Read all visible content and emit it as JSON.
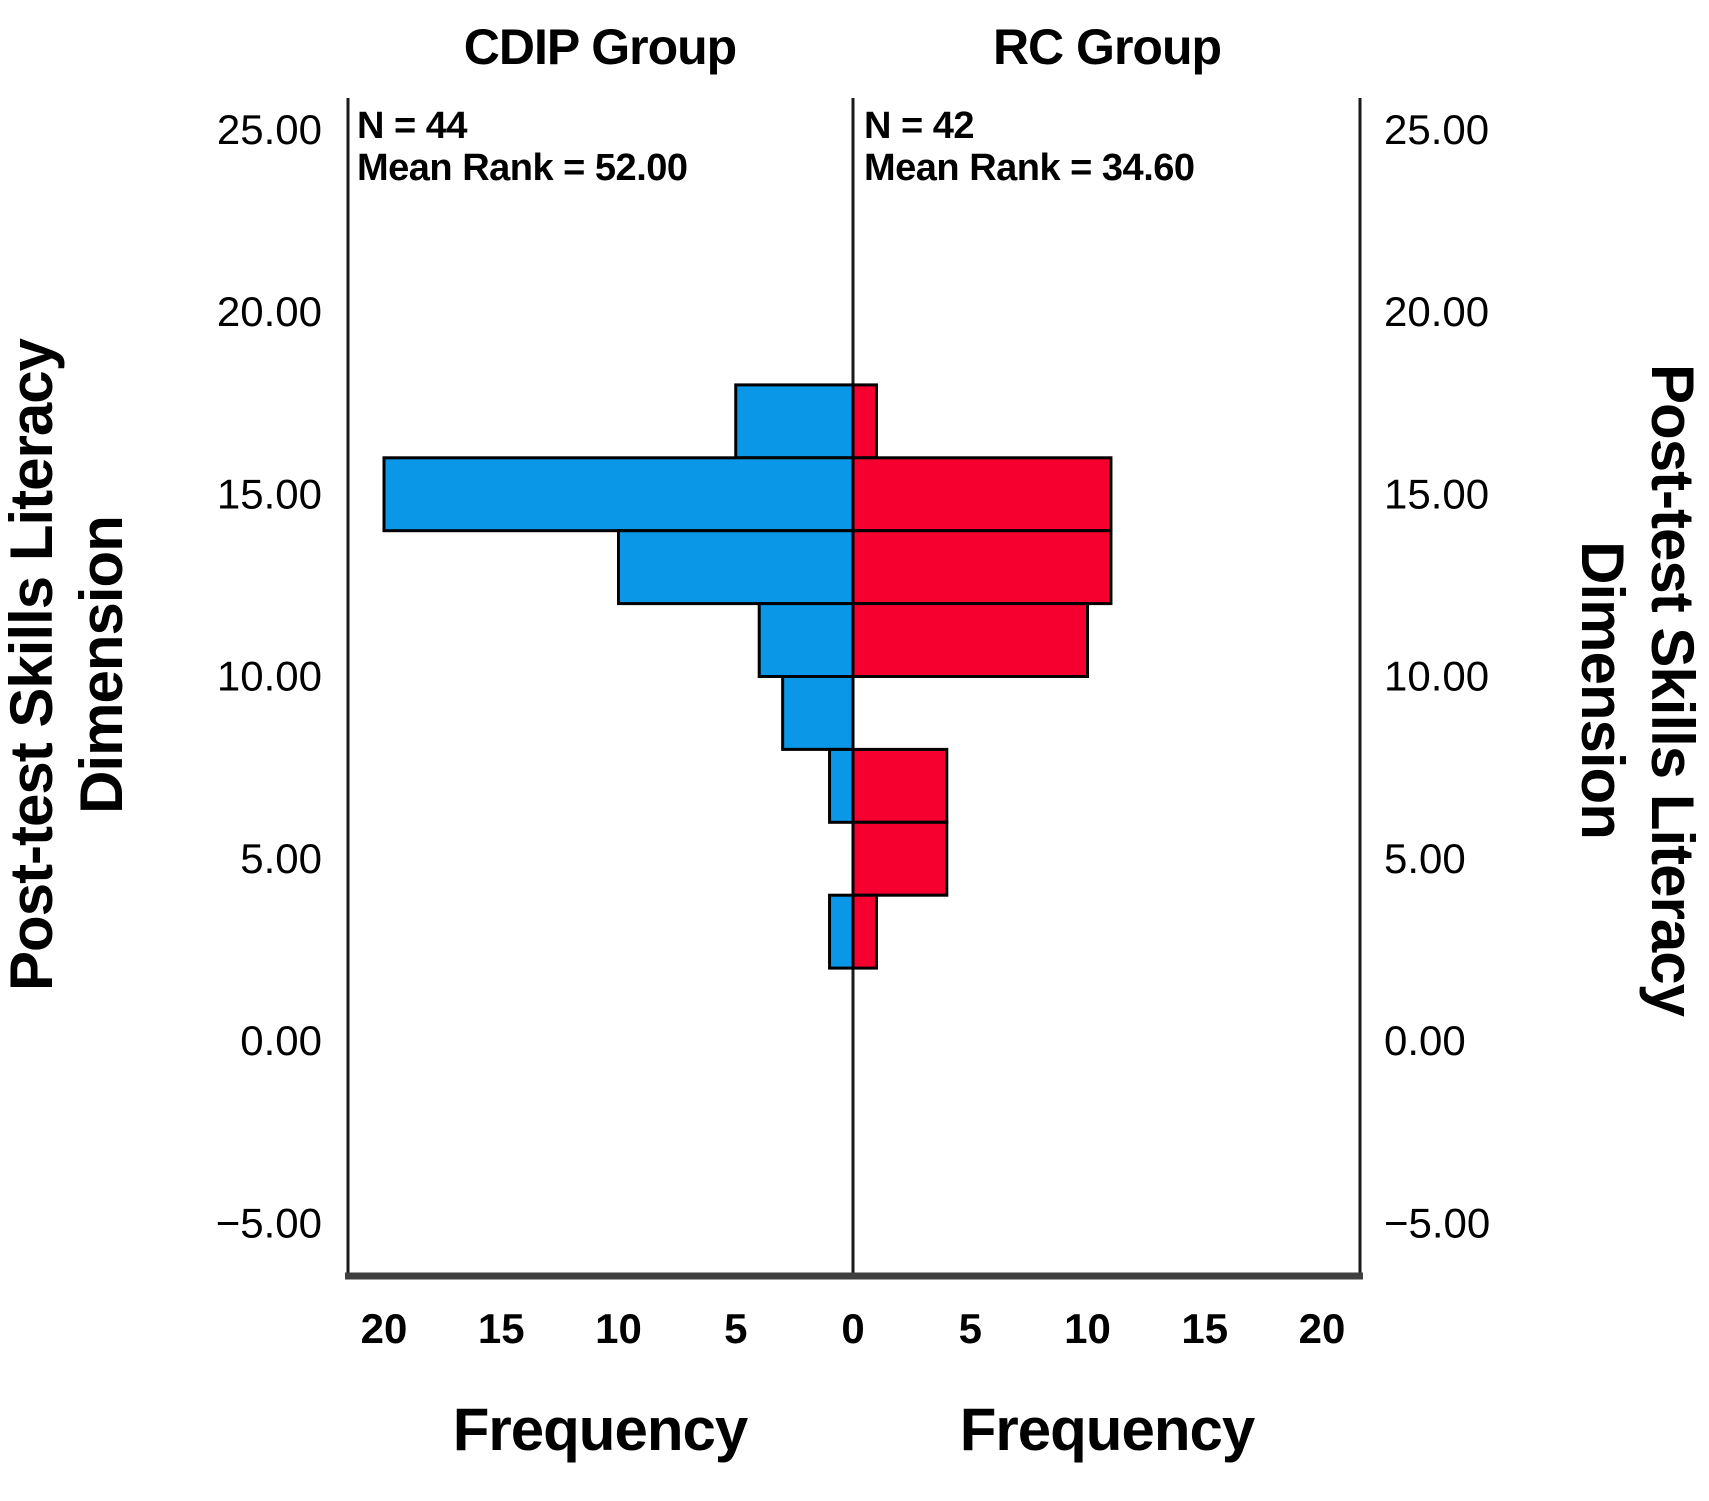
{
  "chart_data": {
    "type": "bar",
    "variant": "back-to-back-population-pyramid-histogram",
    "background": "#ffffff",
    "left_panel": {
      "title": "CDIP Group",
      "stats_lines": [
        "N = 44",
        "Mean Rank = 52.00"
      ],
      "bar_color": "#0A97E8",
      "xlabel": "Frequency"
    },
    "right_panel": {
      "title": "RC Group",
      "stats_lines": [
        "N = 42",
        "Mean Rank = 34.60"
      ],
      "bar_color": "#F6002F",
      "xlabel": "Frequency"
    },
    "y_axis": {
      "label_lines": [
        "Post-test Skills Literacy",
        "Dimension"
      ],
      "ticks": [
        25,
        20,
        15,
        10,
        5,
        0,
        -5
      ],
      "tick_labels": [
        "25.00",
        "20.00",
        "15.00",
        "10.00",
        "5.00",
        "0.00",
        "−5.00"
      ],
      "range": [
        -6.4,
        25.9
      ]
    },
    "x_axis": {
      "ticks_per_side": [
        5,
        10,
        15,
        20
      ],
      "zero_label": "0",
      "tick_labels_left_to_right": [
        "20",
        "15",
        "10",
        "5",
        "0",
        "5",
        "10",
        "15",
        "20"
      ],
      "max_per_side": 21.6
    },
    "bins": [
      {
        "range": [
          16,
          18
        ],
        "cdip": 5,
        "rc": 1
      },
      {
        "range": [
          14,
          16
        ],
        "cdip": 20,
        "rc": 11
      },
      {
        "range": [
          12,
          14
        ],
        "cdip": 10,
        "rc": 11
      },
      {
        "range": [
          10,
          12
        ],
        "cdip": 4,
        "rc": 10
      },
      {
        "range": [
          8,
          10
        ],
        "cdip": 3,
        "rc": 0
      },
      {
        "range": [
          6,
          8
        ],
        "cdip": 1,
        "rc": 4
      },
      {
        "range": [
          4,
          6
        ],
        "cdip": 0,
        "rc": 4
      },
      {
        "range": [
          2,
          4
        ],
        "cdip": 1,
        "rc": 1
      }
    ],
    "series": [
      {
        "name": "CDIP Group",
        "values": [
          5,
          20,
          10,
          4,
          3,
          1,
          0,
          1
        ]
      },
      {
        "name": "RC Group",
        "values": [
          1,
          11,
          11,
          10,
          0,
          4,
          4,
          1
        ]
      }
    ],
    "styles": {
      "bar_outline": "#000000",
      "axis_color": "#1a1a1a",
      "baseline_color": "#3f3f3f",
      "text_color": "#000000"
    }
  }
}
